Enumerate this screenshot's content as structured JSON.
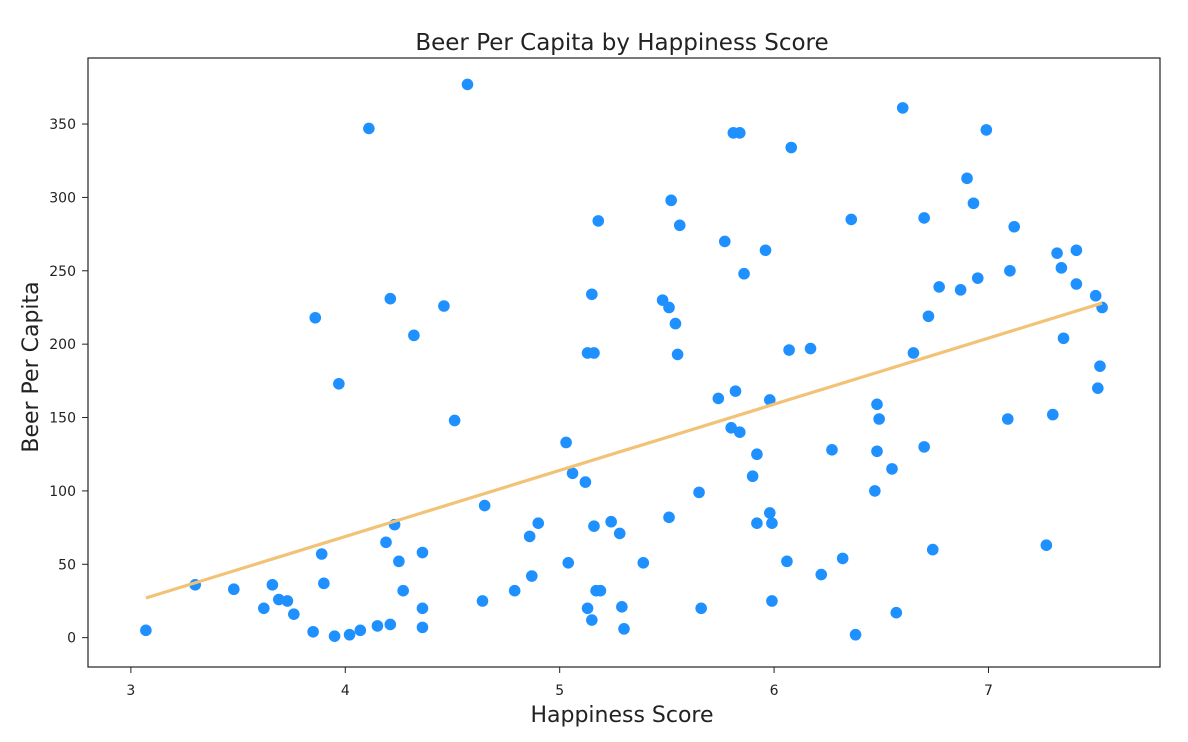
{
  "chart_data": {
    "type": "scatter",
    "title": "Beer Per Capita by Happiness Score",
    "xlabel": "Happiness Score",
    "ylabel": "Beer Per Capita",
    "xlim": [
      2.8,
      7.8
    ],
    "ylim": [
      -20,
      395
    ],
    "xticks": [
      3,
      4,
      5,
      6,
      7
    ],
    "yticks": [
      0,
      50,
      100,
      150,
      200,
      250,
      300,
      350
    ],
    "grid": false,
    "colors": {
      "points": "#1e90ff",
      "trendline": "#f2c277"
    },
    "trendline": {
      "x": [
        3.07,
        7.53
      ],
      "y": [
        27,
        228
      ]
    },
    "points": [
      [
        3.07,
        5
      ],
      [
        3.3,
        36
      ],
      [
        3.48,
        33
      ],
      [
        3.62,
        20
      ],
      [
        3.66,
        36
      ],
      [
        3.69,
        26
      ],
      [
        3.73,
        25
      ],
      [
        3.76,
        16
      ],
      [
        3.85,
        4
      ],
      [
        3.86,
        218
      ],
      [
        3.89,
        57
      ],
      [
        3.9,
        37
      ],
      [
        3.95,
        1
      ],
      [
        3.97,
        173
      ],
      [
        4.02,
        2
      ],
      [
        4.07,
        5
      ],
      [
        4.11,
        347
      ],
      [
        4.15,
        8
      ],
      [
        4.19,
        65
      ],
      [
        4.21,
        9
      ],
      [
        4.21,
        231
      ],
      [
        4.23,
        77
      ],
      [
        4.25,
        52
      ],
      [
        4.27,
        32
      ],
      [
        4.32,
        206
      ],
      [
        4.36,
        20
      ],
      [
        4.36,
        7
      ],
      [
        4.36,
        58
      ],
      [
        4.46,
        226
      ],
      [
        4.51,
        148
      ],
      [
        4.57,
        377
      ],
      [
        4.64,
        25
      ],
      [
        4.65,
        90
      ],
      [
        4.79,
        32
      ],
      [
        4.87,
        42
      ],
      [
        4.86,
        69
      ],
      [
        4.9,
        78
      ],
      [
        5.03,
        133
      ],
      [
        5.04,
        51
      ],
      [
        5.06,
        112
      ],
      [
        5.12,
        106
      ],
      [
        5.13,
        20
      ],
      [
        5.13,
        194
      ],
      [
        5.15,
        12
      ],
      [
        5.15,
        234
      ],
      [
        5.16,
        194
      ],
      [
        5.16,
        76
      ],
      [
        5.17,
        32
      ],
      [
        5.19,
        32
      ],
      [
        5.18,
        284
      ],
      [
        5.24,
        79
      ],
      [
        5.28,
        71
      ],
      [
        5.29,
        21
      ],
      [
        5.3,
        6
      ],
      [
        5.39,
        51
      ],
      [
        5.48,
        230
      ],
      [
        5.51,
        82
      ],
      [
        5.51,
        225
      ],
      [
        5.52,
        298
      ],
      [
        5.54,
        214
      ],
      [
        5.55,
        193
      ],
      [
        5.56,
        281
      ],
      [
        5.65,
        99
      ],
      [
        5.66,
        20
      ],
      [
        5.74,
        163
      ],
      [
        5.77,
        270
      ],
      [
        5.8,
        143
      ],
      [
        5.81,
        344
      ],
      [
        5.82,
        168
      ],
      [
        5.84,
        344
      ],
      [
        5.84,
        140
      ],
      [
        5.86,
        248
      ],
      [
        5.9,
        110
      ],
      [
        5.92,
        125
      ],
      [
        5.92,
        78
      ],
      [
        5.96,
        264
      ],
      [
        5.98,
        162
      ],
      [
        5.98,
        85
      ],
      [
        5.99,
        78
      ],
      [
        5.99,
        25
      ],
      [
        6.06,
        52
      ],
      [
        6.07,
        196
      ],
      [
        6.08,
        334
      ],
      [
        6.17,
        197
      ],
      [
        6.22,
        43
      ],
      [
        6.27,
        128
      ],
      [
        6.32,
        54
      ],
      [
        6.36,
        285
      ],
      [
        6.38,
        2
      ],
      [
        6.47,
        100
      ],
      [
        6.48,
        159
      ],
      [
        6.48,
        127
      ],
      [
        6.49,
        149
      ],
      [
        6.55,
        115
      ],
      [
        6.57,
        17
      ],
      [
        6.6,
        361
      ],
      [
        6.65,
        194
      ],
      [
        6.7,
        130
      ],
      [
        6.7,
        286
      ],
      [
        6.72,
        219
      ],
      [
        6.74,
        60
      ],
      [
        6.77,
        239
      ],
      [
        6.87,
        237
      ],
      [
        6.9,
        313
      ],
      [
        6.93,
        296
      ],
      [
        6.95,
        245
      ],
      [
        6.99,
        346
      ],
      [
        7.09,
        149
      ],
      [
        7.1,
        250
      ],
      [
        7.12,
        280
      ],
      [
        7.27,
        63
      ],
      [
        7.3,
        152
      ],
      [
        7.32,
        262
      ],
      [
        7.34,
        252
      ],
      [
        7.35,
        204
      ],
      [
        7.41,
        264
      ],
      [
        7.41,
        241
      ],
      [
        7.5,
        233
      ],
      [
        7.51,
        170
      ],
      [
        7.52,
        185
      ],
      [
        7.53,
        225
      ]
    ]
  }
}
